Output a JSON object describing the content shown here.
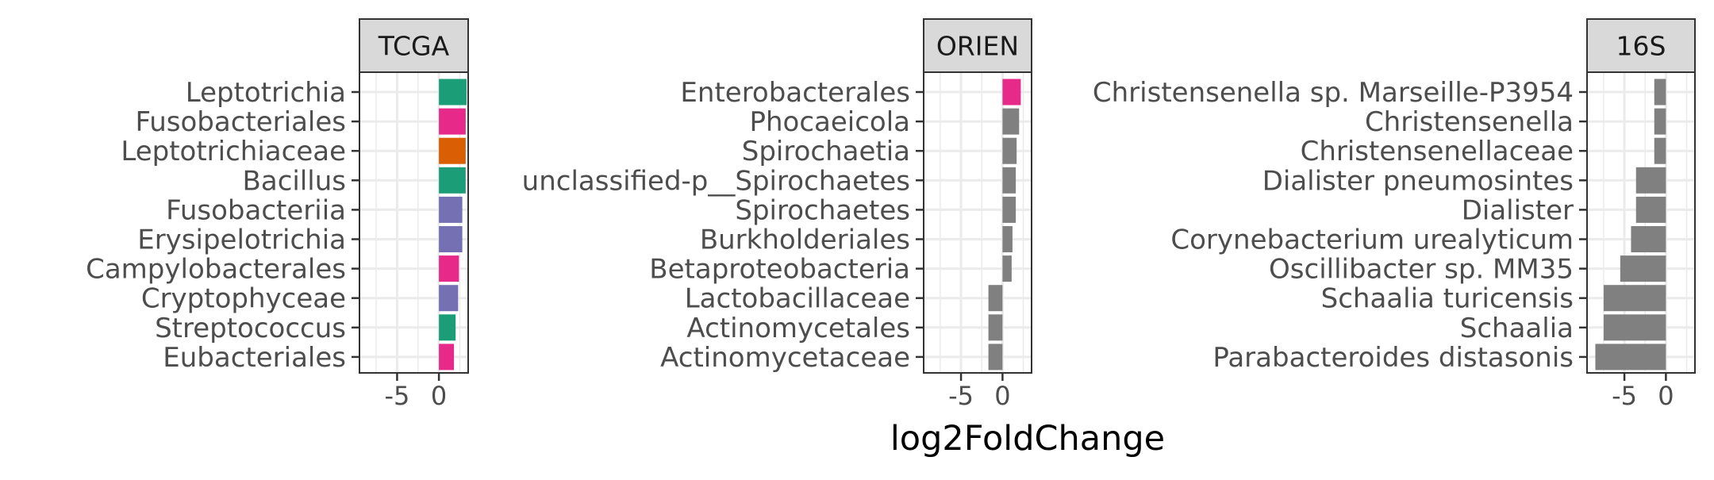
{
  "chart_data": {
    "type": "bar",
    "orientation": "horizontal",
    "xlabel": "log2FoldChange",
    "grid": true,
    "facets": [
      {
        "title": "TCGA",
        "xlim": [
          -9.5,
          3.5
        ],
        "xticks": [
          -5,
          0
        ],
        "xtick_labels": [
          "-5",
          "0"
        ],
        "categories": [
          "Leptotrichia",
          "Fusobacteriales",
          "Leptotrichiaceae",
          "Bacillus",
          "Fusobacteriia",
          "Erysipelotrichia",
          "Campylobacterales",
          "Cryptophyceae",
          "Streptococcus",
          "Eubacteriales"
        ],
        "values": [
          3.3,
          3.2,
          3.2,
          3.2,
          2.8,
          2.8,
          2.4,
          2.3,
          2.0,
          1.8
        ],
        "colors": [
          "#1b9e77",
          "#e7298a",
          "#d95f02",
          "#1b9e77",
          "#7570b3",
          "#7570b3",
          "#e7298a",
          "#7570b3",
          "#1b9e77",
          "#e7298a"
        ]
      },
      {
        "title": "ORIEN",
        "xlim": [
          -9.5,
          3.5
        ],
        "xticks": [
          -5,
          0
        ],
        "xtick_labels": [
          "-5",
          "0"
        ],
        "categories": [
          "Enterobacterales",
          "Phocaeicola",
          "Spirochaetia",
          "unclassified-p__Spirochaetes",
          "Spirochaetes",
          "Burkholderiales",
          "Betaproteobacteria",
          "Lactobacillaceae",
          "Actinomycetales",
          "Actinomycetaceae"
        ],
        "values": [
          2.2,
          2.0,
          1.7,
          1.6,
          1.6,
          1.2,
          1.1,
          -1.7,
          -1.7,
          -1.7
        ],
        "colors": [
          "#e7298a",
          "#808080",
          "#808080",
          "#808080",
          "#808080",
          "#808080",
          "#808080",
          "#808080",
          "#808080",
          "#808080"
        ]
      },
      {
        "title": "16S",
        "xlim": [
          -9.5,
          3.5
        ],
        "xticks": [
          -5,
          0
        ],
        "xtick_labels": [
          "-5",
          "0"
        ],
        "categories": [
          "Christensenella sp. Marseille-P3954",
          "Christensenella",
          "Christensenellaceae",
          "Dialister pneumosintes",
          "Dialister",
          "Corynebacterium urealyticum",
          "Oscillibacter sp. MM35",
          "Schaalia turicensis",
          "Schaalia",
          "Parabacteroides distasonis"
        ],
        "values": [
          -1.4,
          -1.4,
          -1.4,
          -3.6,
          -3.6,
          -4.2,
          -5.5,
          -7.5,
          -7.5,
          -8.5
        ],
        "colors": [
          "#808080",
          "#808080",
          "#808080",
          "#808080",
          "#808080",
          "#808080",
          "#808080",
          "#808080",
          "#808080",
          "#808080"
        ]
      }
    ]
  }
}
